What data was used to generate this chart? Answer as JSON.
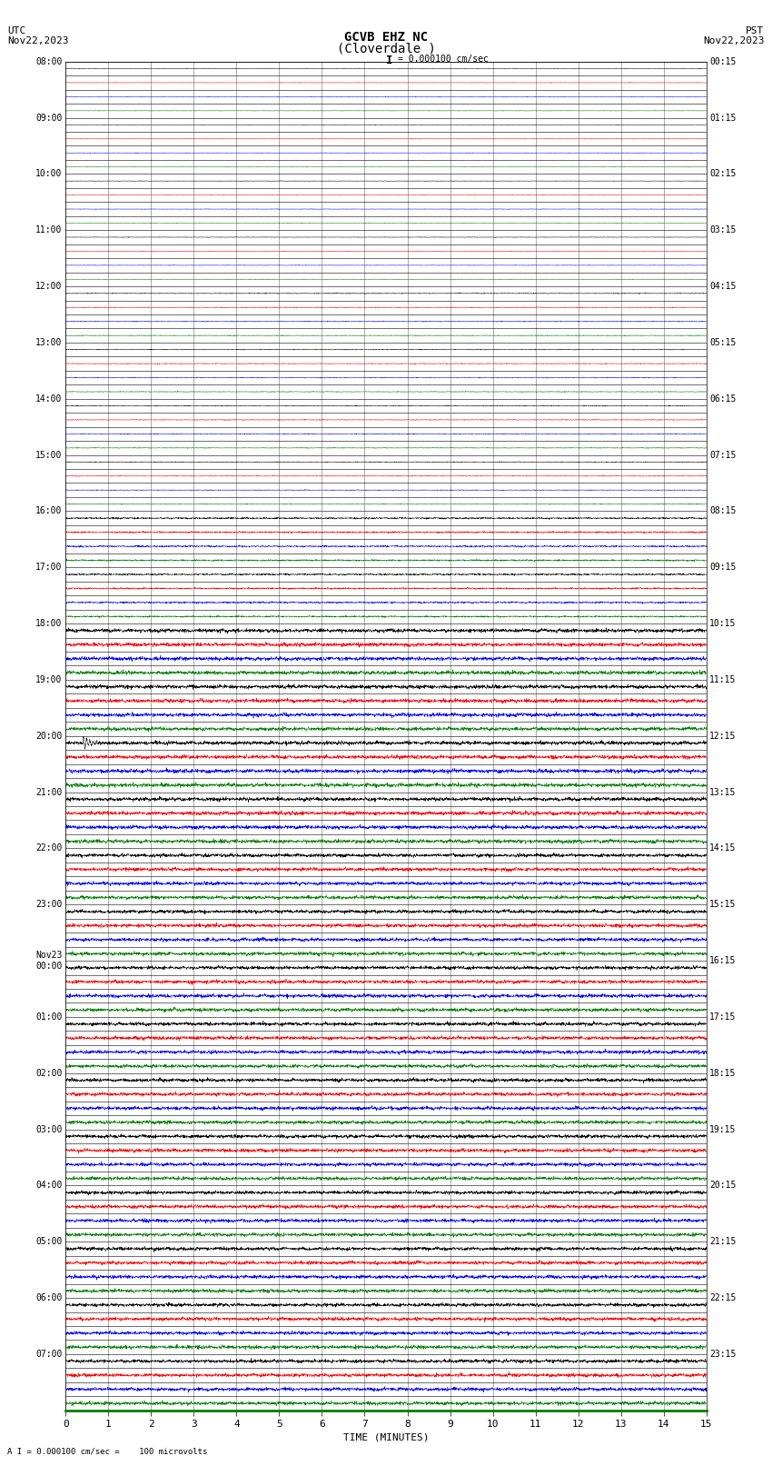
{
  "title_line1": "GCVB EHZ NC",
  "title_line2": "(Cloverdale )",
  "scale_label": "= 0.000100 cm/sec",
  "footer_label": "A I = 0.000100 cm/sec =    100 microvolts",
  "utc_label": "UTC\nNov22,2023",
  "pst_label": "PST\nNov22,2023",
  "xlabel": "TIME (MINUTES)",
  "left_times_utc": [
    "08:00",
    "",
    "",
    "",
    "09:00",
    "",
    "",
    "",
    "10:00",
    "",
    "",
    "",
    "11:00",
    "",
    "",
    "",
    "12:00",
    "",
    "",
    "",
    "13:00",
    "",
    "",
    "",
    "14:00",
    "",
    "",
    "",
    "15:00",
    "",
    "",
    "",
    "16:00",
    "",
    "",
    "",
    "17:00",
    "",
    "",
    "",
    "18:00",
    "",
    "",
    "",
    "19:00",
    "",
    "",
    "",
    "20:00",
    "",
    "",
    "",
    "21:00",
    "",
    "",
    "",
    "22:00",
    "",
    "",
    "",
    "23:00",
    "",
    "",
    "",
    "Nov23\n00:00",
    "",
    "",
    "",
    "01:00",
    "",
    "",
    "",
    "02:00",
    "",
    "",
    "",
    "03:00",
    "",
    "",
    "",
    "04:00",
    "",
    "",
    "",
    "05:00",
    "",
    "",
    "",
    "06:00",
    "",
    "",
    "",
    "07:00",
    "",
    "",
    ""
  ],
  "right_times_pst": [
    "00:15",
    "",
    "",
    "",
    "01:15",
    "",
    "",
    "",
    "02:15",
    "",
    "",
    "",
    "03:15",
    "",
    "",
    "",
    "04:15",
    "",
    "",
    "",
    "05:15",
    "",
    "",
    "",
    "06:15",
    "",
    "",
    "",
    "07:15",
    "",
    "",
    "",
    "08:15",
    "",
    "",
    "",
    "09:15",
    "",
    "",
    "",
    "10:15",
    "",
    "",
    "",
    "11:15",
    "",
    "",
    "",
    "12:15",
    "",
    "",
    "",
    "13:15",
    "",
    "",
    "",
    "14:15",
    "",
    "",
    "",
    "15:15",
    "",
    "",
    "",
    "16:15",
    "",
    "",
    "",
    "17:15",
    "",
    "",
    "",
    "18:15",
    "",
    "",
    "",
    "19:15",
    "",
    "",
    "",
    "20:15",
    "",
    "",
    "",
    "21:15",
    "",
    "",
    "",
    "22:15",
    "",
    "",
    "",
    "23:15",
    "",
    "",
    ""
  ],
  "n_rows": 96,
  "colors_cycle": [
    "black",
    "red",
    "blue",
    "green"
  ],
  "bg_color": "white",
  "grid_color": "#aaaaaa",
  "font_size_title": 10,
  "font_size_axis": 8,
  "font_size_labels": 7,
  "xmin": 0,
  "xmax": 15,
  "xticks": [
    0,
    1,
    2,
    3,
    4,
    5,
    6,
    7,
    8,
    9,
    10,
    11,
    12,
    13,
    14,
    15
  ],
  "earthquake_row": 48,
  "earthquake_minute": 0.5,
  "spike_row": 73,
  "spike_minute": 5.0
}
